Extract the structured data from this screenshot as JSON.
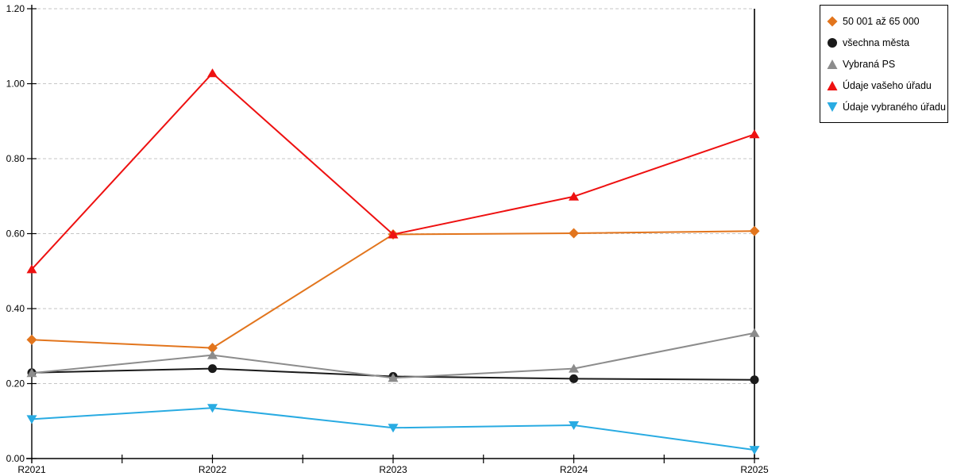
{
  "chart_data": {
    "type": "line",
    "title": "",
    "xlabel": "",
    "ylabel": "",
    "x": [
      "R2021",
      "R2022",
      "R2023",
      "R2024",
      "R2025"
    ],
    "series": [
      {
        "name": "50 001 až 65 000",
        "marker": "diamond",
        "color": "#E2751D",
        "values": [
          0.317,
          0.295,
          0.598,
          0.601,
          0.607
        ]
      },
      {
        "name": "všechna města",
        "marker": "circle",
        "color": "#1A1A1A",
        "values": [
          0.229,
          0.24,
          0.219,
          0.213,
          0.21
        ]
      },
      {
        "name": "Vybraná PS",
        "marker": "triangle-up",
        "color": "#8C8C8C",
        "values": [
          0.228,
          0.276,
          0.215,
          0.24,
          0.335
        ]
      },
      {
        "name": "Údaje vašeho úřadu",
        "marker": "triangle-up",
        "color": "#EE1111",
        "values": [
          0.505,
          1.028,
          0.598,
          0.699,
          0.865
        ]
      },
      {
        "name": "Údaje vybraného úřadu",
        "marker": "triangle-down",
        "color": "#29ABE2",
        "values": [
          0.105,
          0.135,
          0.082,
          0.089,
          0.023
        ]
      }
    ],
    "ylim": [
      0.0,
      1.2
    ],
    "ytick_labels": [
      "0.00",
      "0.20",
      "0.40",
      "0.60",
      "0.80",
      "1.00",
      "1.20"
    ],
    "grid": "horizontal-dashed",
    "gridline_color": "#C6C6C6",
    "axis_color": "#000000",
    "legend_position": "outside-top-right"
  }
}
